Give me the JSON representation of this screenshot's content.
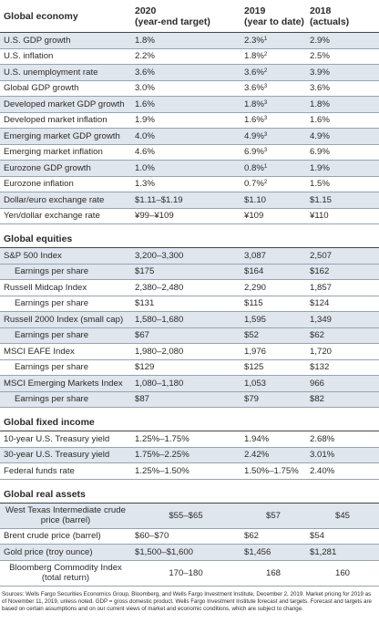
{
  "columns": [
    {
      "year": "2020",
      "sub": "(year-end target)"
    },
    {
      "year": "2019",
      "sub": "(year to date)"
    },
    {
      "year": "2018",
      "sub": "(actuals)"
    }
  ],
  "sections": [
    {
      "title": "Global economy",
      "rows": [
        {
          "label": "U.S. GDP growth",
          "c2020": "1.8%",
          "c2019": "2.3%",
          "note": "1",
          "c2018": "2.9%",
          "shaded": true
        },
        {
          "label": "U.S. inflation",
          "c2020": "2.2%",
          "c2019": "1.8%",
          "note": "2",
          "c2018": "2.5%",
          "shaded": false
        },
        {
          "label": "U.S. unemployment rate",
          "c2020": "3.6%",
          "c2019": "3.6%",
          "note": "2",
          "c2018": "3.9%",
          "shaded": true
        },
        {
          "label": "Global GDP growth",
          "c2020": "3.0%",
          "c2019": "3.6%",
          "note": "3",
          "c2018": "3.6%",
          "shaded": false
        },
        {
          "label": "Developed market GDP growth",
          "c2020": "1.6%",
          "c2019": "1.8%",
          "note": "3",
          "c2018": "1.8%",
          "shaded": true
        },
        {
          "label": "Developed market inflation",
          "c2020": "1.9%",
          "c2019": "1.6%",
          "note": "3",
          "c2018": "1.6%",
          "shaded": false
        },
        {
          "label": "Emerging market GDP growth",
          "c2020": "4.0%",
          "c2019": "4.9%",
          "note": "3",
          "c2018": "4.9%",
          "shaded": true
        },
        {
          "label": "Emerging market inflation",
          "c2020": "4.6%",
          "c2019": "6.9%",
          "note": "3",
          "c2018": "6.9%",
          "shaded": false
        },
        {
          "label": "Eurozone GDP growth",
          "c2020": "1.0%",
          "c2019": "0.8%",
          "note": "1",
          "c2018": "1.9%",
          "shaded": true
        },
        {
          "label": "Eurozone inflation",
          "c2020": "1.3%",
          "c2019": "0.7%",
          "note": "2",
          "c2018": "1.5%",
          "shaded": false
        },
        {
          "label": "Dollar/euro exchange rate",
          "c2020": "$1.11–$1.19",
          "c2019": "$1.10",
          "c2018": "$1.15",
          "shaded": true
        },
        {
          "label": "Yen/dollar exchange rate",
          "c2020": "¥99–¥109",
          "c2019": "¥109",
          "c2018": "¥110",
          "shaded": false
        }
      ]
    },
    {
      "title": "Global equities",
      "rows": [
        {
          "label": "S&P 500 Index",
          "c2020": "3,200–3,300",
          "c2019": "3,087",
          "c2018": "2,507",
          "shaded": true
        },
        {
          "label": "Earnings per share",
          "c2020": "$175",
          "c2019": "$164",
          "c2018": "$162",
          "shaded": true,
          "indent": true
        },
        {
          "label": "Russell Midcap Index",
          "c2020": "2,380–2,480",
          "c2019": "2,290",
          "c2018": "1,857",
          "shaded": false
        },
        {
          "label": "Earnings per share",
          "c2020": "$131",
          "c2019": "$115",
          "c2018": "$124",
          "shaded": false,
          "indent": true
        },
        {
          "label": "Russell 2000 Index (small cap)",
          "c2020": "1,580–1,680",
          "c2019": "1,595",
          "c2018": "1,349",
          "shaded": true
        },
        {
          "label": "Earnings per share",
          "c2020": "$67",
          "c2019": "$52",
          "c2018": "$62",
          "shaded": true,
          "indent": true
        },
        {
          "label": "MSCI EAFE Index",
          "c2020": "1,980–2,080",
          "c2019": "1,976",
          "c2018": "1,720",
          "shaded": false
        },
        {
          "label": "Earnings per share",
          "c2020": "$129",
          "c2019": "$125",
          "c2018": "$132",
          "shaded": false,
          "indent": true
        },
        {
          "label": "MSCI Emerging Markets Index",
          "c2020": "1,080–1,180",
          "c2019": "1,053",
          "c2018": "966",
          "shaded": true
        },
        {
          "label": "Earnings per share",
          "c2020": "$87",
          "c2019": "$79",
          "c2018": "$82",
          "shaded": true,
          "indent": true
        }
      ]
    },
    {
      "title": "Global fixed income",
      "rows": [
        {
          "label": "10-year U.S. Treasury yield",
          "c2020": "1.25%–1.75%",
          "c2019": "1.94%",
          "c2018": "2.68%",
          "shaded": false
        },
        {
          "label": "30-year U.S. Treasury yield",
          "c2020": "1.75%–2.25%",
          "c2019": "2.42%",
          "c2018": "3.01%",
          "shaded": true
        },
        {
          "label": "Federal funds rate",
          "c2020": "1.25%–1.50%",
          "c2019": "1.50%–1.75%",
          "c2018": "2.40%",
          "shaded": false
        }
      ]
    },
    {
      "title": "Global real assets",
      "rows": [
        {
          "label": "West Texas Intermediate crude price (barrel)",
          "c2020": "$55–$65",
          "c2019": "$57",
          "c2018": "$45",
          "shaded": true,
          "center": true
        },
        {
          "label": "Brent crude price (barrel)",
          "c2020": "$60–$70",
          "c2019": "$62",
          "c2018": "$54",
          "shaded": false
        },
        {
          "label": "Gold price (troy ounce)",
          "c2020": "$1,500–$1,600",
          "c2019": "$1,456",
          "c2018": "$1,281",
          "shaded": true
        },
        {
          "label": "Bloomberg Commodity Index (total return)",
          "c2020": "170–180",
          "c2019": "168",
          "c2018": "160",
          "shaded": false,
          "center": true
        }
      ]
    }
  ],
  "footnote": "Sources: Wells Fargo Securities Economics Group, Bloomberg, and Wells Fargo Investment Institute, December 2, 2019. Market pricing for 2019 as of November 11, 2019, unless noted. GDP = gross domestic product. Wells Fargo Investment Institute forecast and targets. Forecast and targets are based on certain assumptions and on our current views of market and economic conditions, which are subject to change."
}
